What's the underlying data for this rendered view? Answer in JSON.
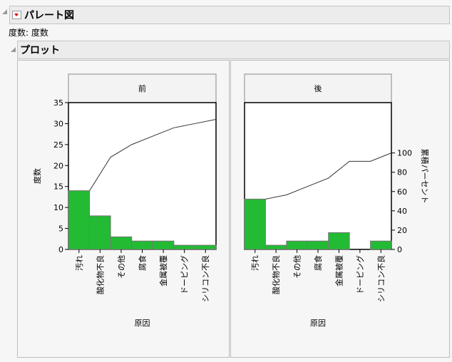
{
  "report": {
    "title": "パレート図",
    "subtitle": "度数: 度数",
    "plot_title": "プロット"
  },
  "chart_data": [
    {
      "type": "bar",
      "facet": "前",
      "categories": [
        "汚れ",
        "酸化物不良",
        "その他",
        "腐食",
        "金属被覆",
        "ドーピング",
        "シリコン不良"
      ],
      "values": [
        14,
        8,
        3,
        2,
        2,
        1,
        1
      ],
      "cumulative": [
        14,
        22,
        25,
        27,
        29,
        30,
        31
      ],
      "ylabel": "度数",
      "xlabel": "原因",
      "ylim": [
        0,
        35
      ],
      "yticks": [
        0,
        5,
        10,
        15,
        20,
        25,
        30,
        35
      ]
    },
    {
      "type": "bar",
      "facet": "後",
      "categories": [
        "汚れ",
        "酸化物不良",
        "その他",
        "腐食",
        "金属被覆",
        "ドーピング",
        "シリコン不良"
      ],
      "values": [
        12,
        1,
        2,
        2,
        4,
        0,
        2
      ],
      "cumulative_percent": [
        52.2,
        56.5,
        65.2,
        73.9,
        91.3,
        91.3,
        100
      ],
      "y2label": "累積パーセント",
      "xlabel": "原因",
      "ylim": [
        0,
        35
      ],
      "y2ticks": [
        0,
        20,
        40,
        60,
        80,
        100
      ]
    }
  ],
  "colors": {
    "bar": "#22bb33",
    "bar_edge": "#777777"
  }
}
